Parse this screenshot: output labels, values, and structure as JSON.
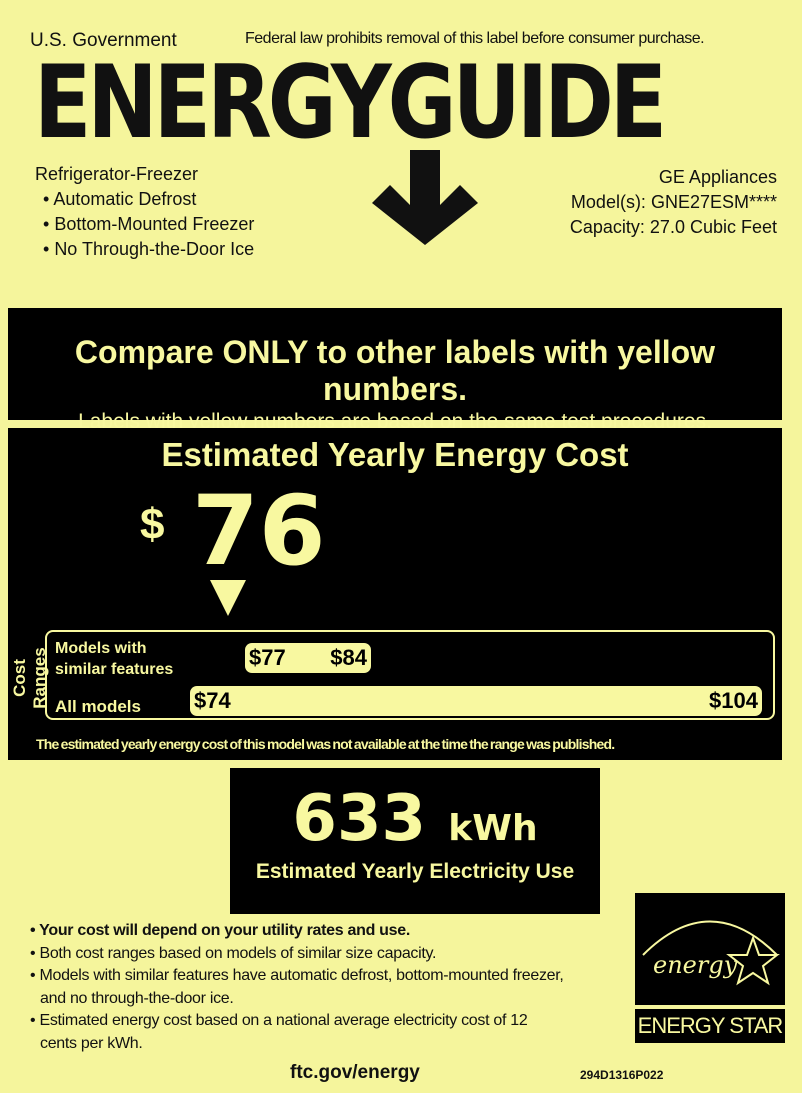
{
  "header": {
    "gov": "U.S. Government",
    "federal": "Federal law prohibits removal of this label before consumer purchase.",
    "logo": "ENERGYGUIDE"
  },
  "product": {
    "type": "Refrigerator-Freezer",
    "features": [
      "Automatic Defrost",
      "Bottom-Mounted Freezer",
      "No Through-the-Door Ice"
    ],
    "brand": "GE Appliances",
    "model": "Model(s): GNE27ESM****",
    "capacity": "Capacity: 27.0 Cubic Feet"
  },
  "compare": {
    "line1": "Compare ONLY to other labels with yellow numbers.",
    "line2": "Labels with yellow numbers are based on the same test procedures."
  },
  "cost": {
    "title": "Estimated Yearly Energy Cost",
    "currency": "$",
    "value": "76",
    "ranges_label": "Cost Ranges",
    "similar_label_1": "Models with",
    "similar_label_2": "similar features",
    "similar_min": "$77",
    "similar_max": "$84",
    "all_label": "All models",
    "all_min": "$74",
    "all_max": "$104",
    "note": "The estimated yearly energy cost of this model was not available at the time the range was published."
  },
  "electricity": {
    "value": "633",
    "unit": "kWh",
    "label": "Estimated Yearly Electricity Use"
  },
  "bullets": [
    "Your cost will depend on your utility rates and use.",
    "Both cost ranges based on models of similar size capacity.",
    "Models with similar features have automatic defrost, bottom-mounted freezer, and no through-the-door ice.",
    "Estimated energy cost based on a national average electricity cost of 12 cents per kWh."
  ],
  "energy_star": {
    "script": "energy",
    "label": "ENERGY STAR"
  },
  "footer": {
    "url": "ftc.gov/energy",
    "code": "294D1316P022"
  },
  "colors": {
    "background": "#f5f59c",
    "box": "#000000",
    "highlight": "#f8f8a0"
  }
}
